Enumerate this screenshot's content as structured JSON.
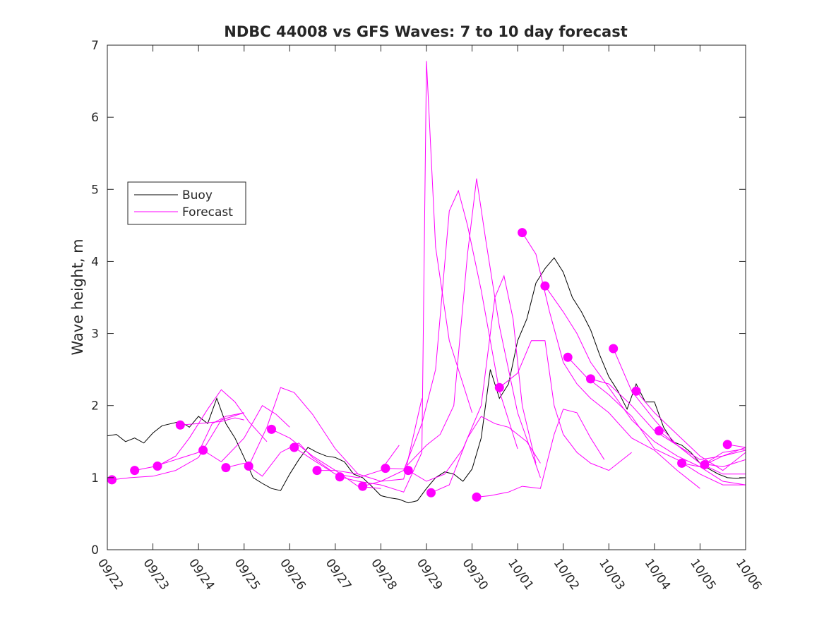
{
  "chart_data": {
    "type": "line",
    "title": "NDBC 44008 vs GFS Waves: 7 to 10 day forecast",
    "xlabel": "",
    "ylabel": "Wave height, m",
    "xlim": [
      0,
      14
    ],
    "ylim": [
      0,
      7
    ],
    "grid": false,
    "legend_position": "upper-left",
    "x_ticks": [
      {
        "value": 0,
        "label": "09/22"
      },
      {
        "value": 1,
        "label": "09/23"
      },
      {
        "value": 2,
        "label": "09/24"
      },
      {
        "value": 3,
        "label": "09/25"
      },
      {
        "value": 4,
        "label": "09/26"
      },
      {
        "value": 5,
        "label": "09/27"
      },
      {
        "value": 6,
        "label": "09/28"
      },
      {
        "value": 7,
        "label": "09/29"
      },
      {
        "value": 8,
        "label": "09/30"
      },
      {
        "value": 9,
        "label": "10/01"
      },
      {
        "value": 10,
        "label": "10/02"
      },
      {
        "value": 11,
        "label": "10/03"
      },
      {
        "value": 12,
        "label": "10/04"
      },
      {
        "value": 13,
        "label": "10/05"
      },
      {
        "value": 14,
        "label": "10/06"
      }
    ],
    "y_ticks": [
      {
        "value": 0,
        "label": "0"
      },
      {
        "value": 1,
        "label": "1"
      },
      {
        "value": 2,
        "label": "2"
      },
      {
        "value": 3,
        "label": "3"
      },
      {
        "value": 4,
        "label": "4"
      },
      {
        "value": 5,
        "label": "5"
      },
      {
        "value": 6,
        "label": "6"
      },
      {
        "value": 7,
        "label": "7"
      }
    ],
    "colors": {
      "buoy": "#000000",
      "forecast": "#ff00ff",
      "axis": "#262626"
    },
    "legend": [
      {
        "label": "Buoy",
        "series": "buoy"
      },
      {
        "label": "Forecast",
        "series": "forecast"
      }
    ],
    "buoy": {
      "name": "Buoy",
      "x": [
        0,
        0.2,
        0.4,
        0.6,
        0.8,
        1.0,
        1.2,
        1.4,
        1.6,
        1.8,
        2.0,
        2.2,
        2.4,
        2.6,
        2.8,
        3.0,
        3.2,
        3.4,
        3.6,
        3.8,
        4.0,
        4.2,
        4.4,
        4.6,
        4.8,
        5.0,
        5.2,
        5.4,
        5.6,
        5.8,
        6.0,
        6.2,
        6.4,
        6.6,
        6.8,
        7.0,
        7.2,
        7.4,
        7.6,
        7.8,
        8.0,
        8.2,
        8.4,
        8.6,
        8.8,
        9.0,
        9.2,
        9.4,
        9.6,
        9.8,
        10.0,
        10.2,
        10.4,
        10.6,
        10.8,
        11.0,
        11.2,
        11.4,
        11.6,
        11.8,
        12.0,
        12.2,
        12.4,
        12.6,
        12.8,
        13.0,
        13.2,
        13.4,
        13.6,
        13.8,
        14.0
      ],
      "y": [
        1.58,
        1.6,
        1.5,
        1.55,
        1.48,
        1.62,
        1.72,
        1.75,
        1.78,
        1.7,
        1.85,
        1.75,
        2.1,
        1.75,
        1.55,
        1.28,
        1.0,
        0.92,
        0.85,
        0.82,
        1.05,
        1.25,
        1.42,
        1.35,
        1.3,
        1.28,
        1.22,
        1.05,
        1.0,
        0.88,
        0.75,
        0.72,
        0.7,
        0.65,
        0.68,
        0.85,
        1.0,
        1.08,
        1.05,
        0.95,
        1.12,
        1.55,
        2.5,
        2.1,
        2.3,
        2.9,
        3.2,
        3.7,
        3.9,
        4.05,
        3.85,
        3.5,
        3.3,
        3.05,
        2.7,
        2.4,
        2.2,
        1.95,
        2.3,
        2.05,
        2.05,
        1.7,
        1.5,
        1.45,
        1.35,
        1.2,
        1.12,
        1.05,
        1.0,
        0.99,
        1.0
      ]
    },
    "forecast_runs": [
      {
        "x": [
          0.1,
          0.5,
          1.0,
          1.5,
          2.0,
          2.5,
          3.0
        ],
        "y": [
          0.97,
          1.0,
          1.02,
          1.1,
          1.28,
          1.8,
          1.9
        ]
      },
      {
        "x": [
          0.6,
          1.0,
          1.5,
          2.0,
          2.3,
          2.6,
          3.0
        ],
        "y": [
          1.1,
          1.15,
          1.25,
          1.35,
          1.75,
          1.85,
          1.9
        ]
      },
      {
        "x": [
          1.1,
          1.5,
          1.8,
          2.2,
          2.5,
          2.8,
          3.1,
          3.5
        ],
        "y": [
          1.16,
          1.3,
          1.55,
          1.95,
          2.22,
          2.05,
          1.78,
          1.5
        ]
      },
      {
        "x": [
          1.6,
          2.0,
          2.5,
          2.8,
          3.0
        ],
        "y": [
          1.73,
          1.75,
          1.78,
          1.83,
          1.8
        ]
      },
      {
        "x": [
          2.1,
          2.5,
          3.0,
          3.4,
          3.7,
          4.0
        ],
        "y": [
          1.38,
          1.22,
          1.55,
          2.0,
          1.88,
          1.7
        ]
      },
      {
        "x": [
          2.6,
          3.0,
          3.4,
          3.8,
          4.2,
          4.5,
          4.9
        ],
        "y": [
          1.14,
          1.2,
          1.02,
          1.35,
          1.48,
          1.28,
          1.1
        ]
      },
      {
        "x": [
          3.1,
          3.5,
          3.8,
          4.1,
          4.5,
          5.0,
          5.5
        ],
        "y": [
          1.16,
          1.7,
          2.25,
          2.18,
          1.88,
          1.4,
          1.05
        ]
      },
      {
        "x": [
          3.6,
          4.0,
          4.5,
          5.0,
          5.5,
          6.0
        ],
        "y": [
          1.67,
          1.55,
          1.3,
          1.1,
          0.88,
          0.85
        ]
      },
      {
        "x": [
          4.1,
          4.5,
          5.0,
          5.5,
          6.0,
          6.4
        ],
        "y": [
          1.42,
          1.25,
          1.05,
          1.0,
          1.1,
          1.45
        ]
      },
      {
        "x": [
          4.6,
          5.0,
          5.5,
          6.0,
          6.5,
          6.9
        ],
        "y": [
          1.1,
          1.1,
          1.05,
          0.95,
          0.98,
          2.1
        ]
      },
      {
        "x": [
          5.1,
          5.5,
          6.0,
          6.5,
          6.9,
          7.0,
          7.2,
          7.5,
          8.0
        ],
        "y": [
          1.01,
          0.95,
          0.9,
          0.8,
          1.35,
          6.78,
          4.2,
          2.9,
          1.9
        ]
      },
      {
        "x": [
          5.6,
          6.0,
          6.5,
          6.9,
          7.2,
          7.5,
          7.7,
          7.9,
          8.2,
          8.6,
          9.0
        ],
        "y": [
          0.88,
          0.95,
          1.1,
          1.75,
          2.5,
          4.7,
          4.98,
          4.5,
          3.6,
          2.2,
          1.4
        ]
      },
      {
        "x": [
          6.1,
          6.5,
          7.0,
          7.3,
          7.6,
          7.9,
          8.1,
          8.3,
          8.6,
          9.0,
          9.5
        ],
        "y": [
          1.13,
          1.12,
          1.45,
          1.6,
          2.0,
          4.1,
          5.15,
          4.3,
          3.1,
          1.9,
          1.0
        ]
      },
      {
        "x": [
          6.6,
          7.0,
          7.4,
          7.8,
          8.2,
          8.5,
          8.7,
          8.9,
          9.1,
          9.4
        ],
        "y": [
          1.1,
          0.95,
          1.05,
          1.4,
          2.0,
          3.5,
          3.8,
          3.2,
          2.0,
          1.2
        ]
      },
      {
        "x": [
          7.1,
          7.5,
          7.9,
          8.2,
          8.5,
          8.8,
          9.2,
          9.5
        ],
        "y": [
          0.79,
          0.9,
          1.55,
          1.85,
          1.75,
          1.7,
          1.5,
          1.2
        ]
      },
      {
        "x": [
          8.1,
          8.4,
          8.8,
          9.1,
          9.5,
          9.8,
          10.0,
          10.3,
          10.6,
          10.9
        ],
        "y": [
          0.73,
          0.75,
          0.8,
          0.88,
          0.85,
          1.6,
          1.95,
          1.9,
          1.55,
          1.25
        ]
      },
      {
        "x": [
          8.6,
          9.0,
          9.3,
          9.6,
          9.8,
          10.0,
          10.3,
          10.6,
          11.0,
          11.5
        ],
        "y": [
          2.25,
          2.45,
          2.9,
          2.9,
          2.0,
          1.6,
          1.35,
          1.2,
          1.1,
          1.35
        ]
      },
      {
        "x": [
          9.1,
          9.4,
          9.7,
          10.0,
          10.3,
          10.6,
          11.0,
          11.5,
          12.0,
          12.5,
          13.0
        ],
        "y": [
          4.4,
          4.1,
          3.3,
          2.6,
          2.3,
          2.1,
          1.9,
          1.55,
          1.38,
          1.1,
          0.85
        ]
      },
      {
        "x": [
          9.6,
          10.0,
          10.3,
          10.6,
          11.0,
          11.5,
          12.0,
          12.5,
          13.0,
          13.5,
          14.0
        ],
        "y": [
          3.66,
          3.3,
          3.0,
          2.6,
          2.25,
          1.8,
          1.5,
          1.3,
          1.15,
          0.95,
          0.9
        ]
      },
      {
        "x": [
          10.1,
          10.5,
          11.0,
          11.5,
          12.0,
          12.5,
          13.0,
          13.5,
          14.0
        ],
        "y": [
          2.67,
          2.4,
          2.15,
          1.85,
          1.4,
          1.25,
          1.05,
          0.9,
          0.9
        ]
      },
      {
        "x": [
          10.6,
          11.0,
          11.5,
          12.0,
          12.5,
          13.0,
          13.5,
          14.0
        ],
        "y": [
          2.37,
          2.3,
          2.0,
          1.65,
          1.45,
          1.2,
          1.05,
          1.05
        ]
      },
      {
        "x": [
          11.1,
          11.5,
          12.0,
          12.5,
          13.0,
          13.5,
          14.0
        ],
        "y": [
          2.79,
          2.2,
          1.8,
          1.45,
          1.2,
          1.15,
          1.25
        ]
      },
      {
        "x": [
          11.6,
          12.0,
          12.5,
          13.0,
          13.5,
          14.0
        ],
        "y": [
          2.2,
          1.9,
          1.6,
          1.3,
          1.1,
          1.35
        ]
      },
      {
        "x": [
          12.1,
          12.5,
          13.0,
          13.5,
          14.0
        ],
        "y": [
          1.65,
          1.45,
          1.25,
          1.3,
          1.38
        ]
      },
      {
        "x": [
          12.6,
          13.0,
          13.5,
          14.0
        ],
        "y": [
          1.2,
          1.15,
          1.35,
          1.4
        ]
      },
      {
        "x": [
          13.1,
          13.5,
          14.0
        ],
        "y": [
          1.18,
          1.3,
          1.42
        ]
      },
      {
        "x": [
          13.6,
          14.0
        ],
        "y": [
          1.46,
          1.42
        ]
      }
    ]
  }
}
